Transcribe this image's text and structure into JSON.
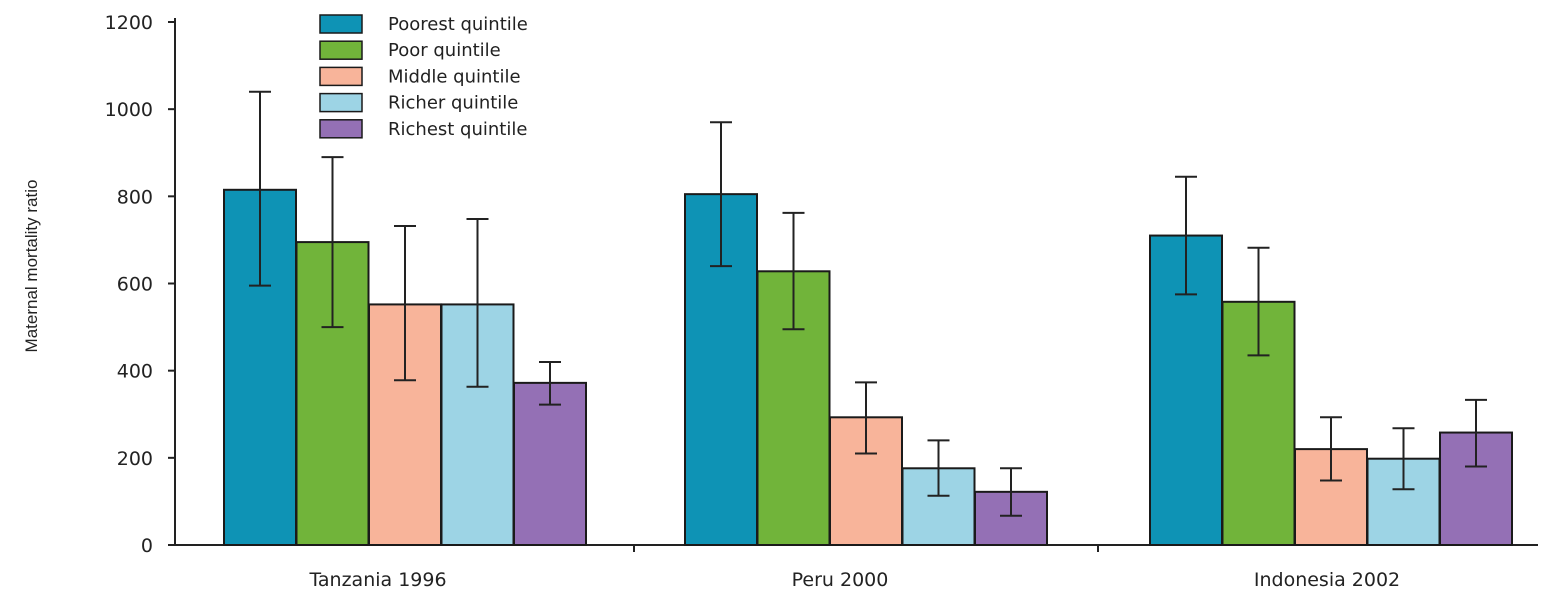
{
  "chart_data": {
    "type": "bar",
    "title": "",
    "xlabel": "",
    "ylabel": "Maternal mortality ratio",
    "ylim": [
      0,
      1200
    ],
    "yticks": [
      0,
      200,
      400,
      600,
      800,
      1000,
      1200
    ],
    "grid": false,
    "legend_position": "top-left",
    "categories": [
      "Tanzania 1996",
      "Peru 2000",
      "Indonesia 2002"
    ],
    "series": [
      {
        "name": "Poorest quintile",
        "color": "#0e93b5",
        "values": [
          815,
          805,
          710
        ],
        "error_low": [
          595,
          640,
          575
        ],
        "error_high": [
          1040,
          970,
          845
        ]
      },
      {
        "name": "Poor quintile",
        "color": "#71b43a",
        "values": [
          695,
          628,
          558
        ],
        "error_low": [
          500,
          495,
          435
        ],
        "error_high": [
          890,
          762,
          682
        ]
      },
      {
        "name": "Middle quintile",
        "color": "#f8b49a",
        "values": [
          552,
          293,
          220
        ],
        "error_low": [
          378,
          210,
          148
        ],
        "error_high": [
          732,
          373,
          293
        ]
      },
      {
        "name": "Richer quintile",
        "color": "#9dd4e5",
        "values": [
          552,
          176,
          198
        ],
        "error_low": [
          363,
          113,
          128
        ],
        "error_high": [
          748,
          240,
          268
        ]
      },
      {
        "name": "Richest quintile",
        "color": "#9470b5",
        "values": [
          372,
          122,
          258
        ],
        "error_low": [
          322,
          67,
          180
        ],
        "error_high": [
          420,
          176,
          333
        ]
      }
    ]
  }
}
